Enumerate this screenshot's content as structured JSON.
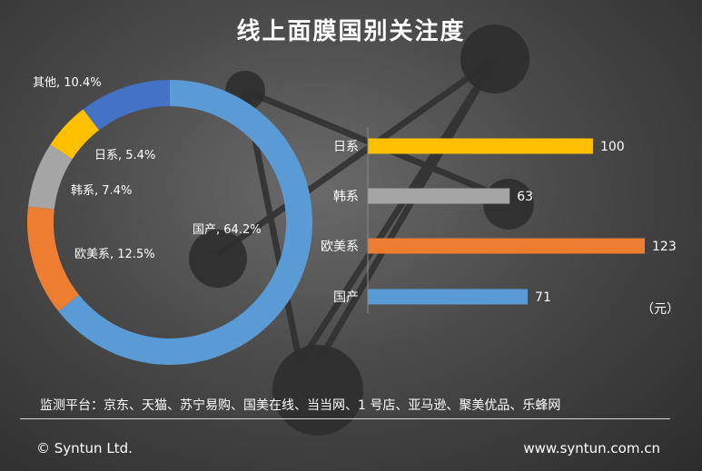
{
  "title": "线上面膜国别关注度",
  "colors": {
    "国产": "#5b9bd5",
    "欧美系": "#ed7d31",
    "韩系": "#a5a5a5",
    "日系": "#ffc000",
    "其他": "#4472c4"
  },
  "chart_data": [
    {
      "type": "pie",
      "style": "donut",
      "slices": [
        {
          "name": "国产",
          "value": 64.2,
          "label": "国产, 64.2%"
        },
        {
          "name": "欧美系",
          "value": 12.5,
          "label": "欧美系, 12.5%"
        },
        {
          "name": "韩系",
          "value": 7.4,
          "label": "韩系, 7.4%"
        },
        {
          "name": "日系",
          "value": 5.4,
          "label": "日系, 5.4%"
        },
        {
          "name": "其他",
          "value": 10.4,
          "label": "其他, 10.4%"
        }
      ]
    },
    {
      "type": "bar",
      "orientation": "horizontal",
      "categories": [
        "日系",
        "韩系",
        "欧美系",
        "国产"
      ],
      "values": [
        100,
        63,
        123,
        71
      ],
      "unit": "（元）",
      "grid": false
    }
  ],
  "footer": {
    "source": "监测平台：京东、天猫、苏宁易购、国美在线、当当网、1 号店、亚马逊、聚美优品、乐蜂网",
    "copyright": "© Syntun Ltd.",
    "website": "www.syntun.com.cn"
  }
}
